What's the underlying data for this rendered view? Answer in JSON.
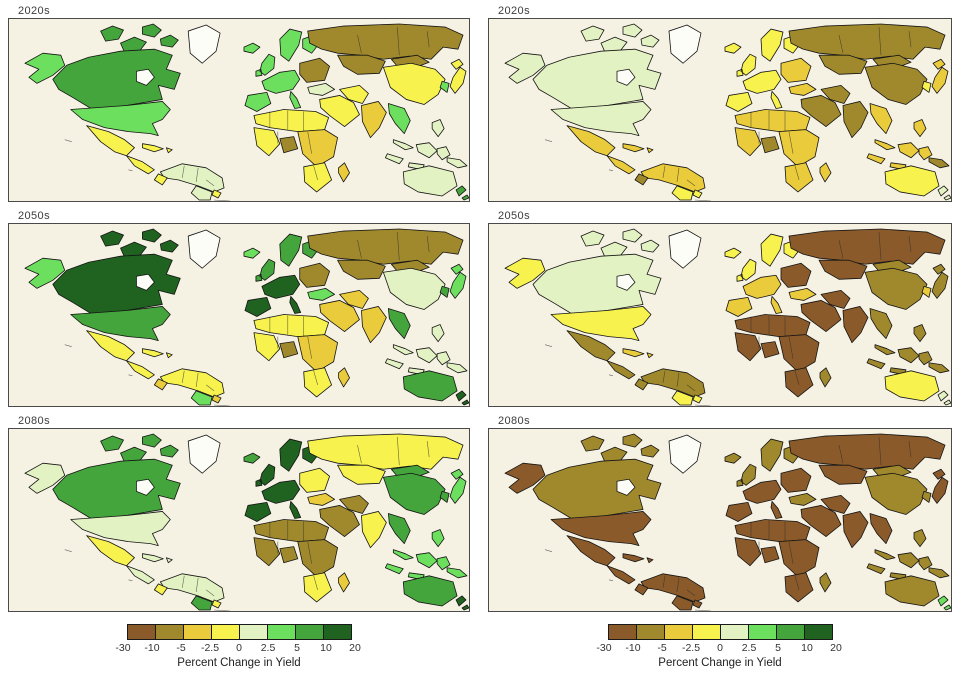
{
  "figure": {
    "background": "#ffffff",
    "panel_bg": "#f5f1e3",
    "panel_border": "#4a4a4a",
    "no_data_color": "#fdfdf8",
    "country_outline": "#151515"
  },
  "palette": {
    "bins": [
      "#8a5a2a",
      "#a0892c",
      "#e9cb3b",
      "#f7f24e",
      "#e3f2c2",
      "#6cdf5e",
      "#44a53c",
      "#206320"
    ]
  },
  "legend": {
    "ticks": [
      "-30",
      "-10",
      "-5",
      "-2.5",
      "0",
      "2.5",
      "5",
      "10",
      "20"
    ],
    "caption": "Percent Change in Yield"
  },
  "panels": [
    {
      "label": "2020s",
      "regions": {
        "alaska": 5,
        "canada": 6,
        "usa": 5,
        "mexico": 3,
        "central_america": 3,
        "caribbean": 3,
        "south_america": 4,
        "ecuador": 3,
        "argentina": 4,
        "uruguay": 3,
        "iceland": 5,
        "uk": 5,
        "scandinavia": 5,
        "west_europe": 5,
        "east_europe": 1,
        "russia": 1,
        "kazakhstan": 1,
        "turkey": 4,
        "middle_east": 3,
        "iran": 3,
        "mongolia": 1,
        "china": 3,
        "india": 2,
        "se_asia": 5,
        "malaysia": 4,
        "indonesia": 4,
        "philippines": 4,
        "papua": 4,
        "japan": 3,
        "korea": 5,
        "north_africa": 3,
        "west_africa": 3,
        "nigeria": 1,
        "central_east_africa": 2,
        "south_africa": 3,
        "madagascar": 2,
        "australia": 4,
        "new_zealand": 6
      }
    },
    {
      "label": "2020s",
      "regions": {
        "alaska": 4,
        "canada": 4,
        "usa": 4,
        "mexico": 2,
        "central_america": 2,
        "caribbean": 2,
        "south_america": 2,
        "ecuador": 1,
        "argentina": 3,
        "uruguay": 3,
        "iceland": 3,
        "uk": 3,
        "scandinavia": 3,
        "west_europe": 3,
        "east_europe": 2,
        "russia": 1,
        "kazakhstan": 1,
        "turkey": 2,
        "middle_east": 1,
        "iran": 1,
        "mongolia": 1,
        "china": 1,
        "india": 1,
        "se_asia": 2,
        "malaysia": 2,
        "indonesia": 2,
        "philippines": 2,
        "papua": 1,
        "japan": 2,
        "korea": 3,
        "north_africa": 2,
        "west_africa": 2,
        "nigeria": 1,
        "central_east_africa": 2,
        "south_africa": 2,
        "madagascar": 2,
        "australia": 3,
        "new_zealand": 4
      }
    },
    {
      "label": "2050s",
      "regions": {
        "alaska": 5,
        "canada": 7,
        "usa": 6,
        "mexico": 3,
        "central_america": 3,
        "caribbean": 3,
        "south_america": 3,
        "ecuador": 2,
        "argentina": 5,
        "uruguay": 2,
        "iceland": 5,
        "uk": 6,
        "scandinavia": 6,
        "west_europe": 7,
        "east_europe": 1,
        "russia": 1,
        "kazakhstan": 1,
        "turkey": 5,
        "middle_east": 2,
        "iran": 2,
        "mongolia": 1,
        "china": 4,
        "india": 2,
        "se_asia": 6,
        "malaysia": 4,
        "indonesia": 4,
        "philippines": 4,
        "papua": 4,
        "japan": 5,
        "korea": 6,
        "north_africa": 3,
        "west_africa": 3,
        "nigeria": 1,
        "central_east_africa": 2,
        "south_africa": 3,
        "madagascar": 2,
        "australia": 6,
        "new_zealand": 7
      }
    },
    {
      "label": "2050s",
      "regions": {
        "alaska": 3,
        "canada": 4,
        "usa": 3,
        "mexico": 1,
        "central_america": 1,
        "caribbean": 2,
        "south_america": 1,
        "ecuador": 1,
        "argentina": 3,
        "uruguay": 3,
        "iceland": 3,
        "uk": 3,
        "scandinavia": 3,
        "west_europe": 2,
        "east_europe": 0,
        "russia": 0,
        "kazakhstan": 0,
        "turkey": 2,
        "middle_east": 0,
        "iran": 0,
        "mongolia": 1,
        "china": 1,
        "india": 0,
        "se_asia": 1,
        "malaysia": 1,
        "indonesia": 1,
        "philippines": 1,
        "papua": 1,
        "japan": 1,
        "korea": 2,
        "north_africa": 0,
        "west_africa": 0,
        "nigeria": 0,
        "central_east_africa": 0,
        "south_africa": 0,
        "madagascar": 1,
        "australia": 3,
        "new_zealand": 4
      }
    },
    {
      "label": "2080s",
      "regions": {
        "alaska": 4,
        "canada": 6,
        "usa": 4,
        "mexico": 3,
        "central_america": 4,
        "caribbean": 4,
        "south_america": 4,
        "ecuador": 3,
        "argentina": 6,
        "uruguay": 3,
        "iceland": 6,
        "uk": 7,
        "scandinavia": 7,
        "west_europe": 7,
        "east_europe": 3,
        "russia": 3,
        "kazakhstan": 3,
        "turkey": 2,
        "middle_east": 1,
        "iran": 1,
        "mongolia": 6,
        "china": 6,
        "india": 3,
        "se_asia": 6,
        "malaysia": 5,
        "indonesia": 5,
        "philippines": 5,
        "papua": 5,
        "japan": 5,
        "korea": 6,
        "north_africa": 1,
        "west_africa": 1,
        "nigeria": 1,
        "central_east_africa": 1,
        "south_africa": 3,
        "madagascar": 2,
        "australia": 6,
        "new_zealand": 7
      }
    },
    {
      "label": "2080s",
      "regions": {
        "alaska": 0,
        "canada": 1,
        "usa": 0,
        "mexico": 0,
        "central_america": 0,
        "caribbean": 0,
        "south_america": 0,
        "ecuador": 0,
        "argentina": 0,
        "uruguay": 0,
        "iceland": 1,
        "uk": 1,
        "scandinavia": 1,
        "west_europe": 0,
        "east_europe": 0,
        "russia": 0,
        "kazakhstan": 0,
        "turkey": 1,
        "middle_east": 0,
        "iran": 0,
        "mongolia": 1,
        "china": 1,
        "india": 0,
        "se_asia": 0,
        "malaysia": 1,
        "indonesia": 1,
        "philippines": 1,
        "papua": 1,
        "japan": 0,
        "korea": 1,
        "north_africa": 0,
        "west_africa": 0,
        "nigeria": 0,
        "central_east_africa": 0,
        "south_africa": 0,
        "madagascar": 1,
        "australia": 1,
        "new_zealand": 5
      }
    }
  ]
}
